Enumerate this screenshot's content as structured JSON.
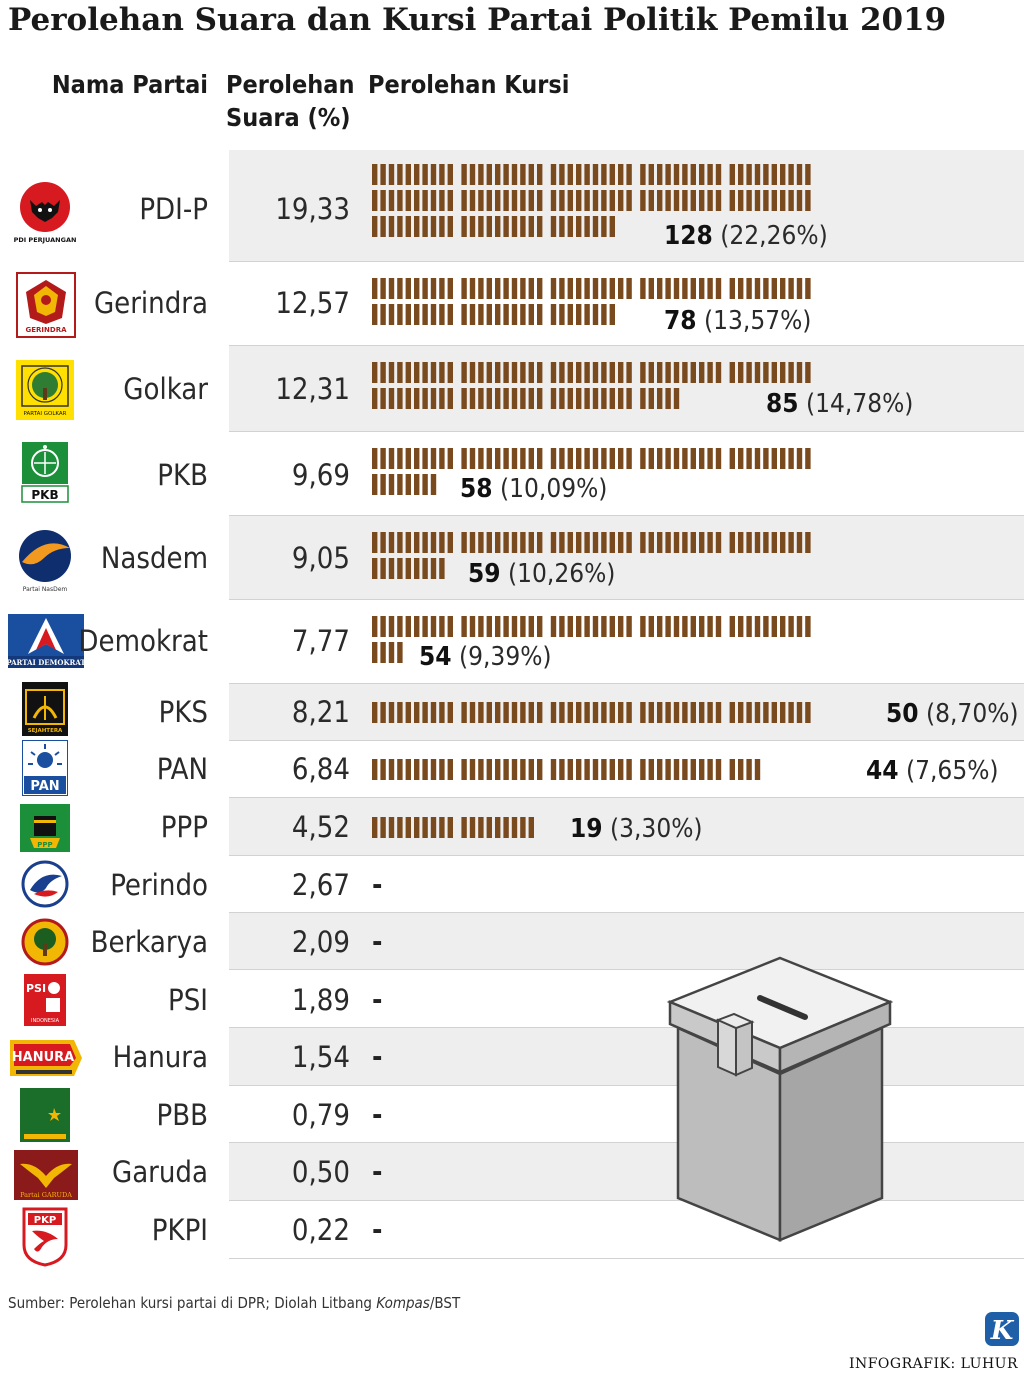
{
  "title": "Perolehan Suara dan Kursi Partai Politik Pemilu 2019",
  "headers": {
    "name": "Nama Partai",
    "votes_line1": "Perolehan",
    "votes_line2": "Suara (%)",
    "seats": "Perolehan Kursi"
  },
  "chart_data": {
    "type": "table",
    "columns": [
      "Nama Partai",
      "Perolehan Suara (%)",
      "Perolehan Kursi"
    ],
    "rows": [
      {
        "party": "PDI-P",
        "votes": "19,33",
        "seats": 128,
        "seat_pct": "(22,26%)",
        "logo_text": "PDI PERJUANGAN",
        "logo_icon": "bull-emblem-icon"
      },
      {
        "party": "Gerindra",
        "votes": "12,57",
        "seats": 78,
        "seat_pct": "(13,57%)",
        "logo_text": "GERINDRA",
        "logo_icon": "garuda-head-icon"
      },
      {
        "party": "Golkar",
        "votes": "12,31",
        "seats": 85,
        "seat_pct": "(14,78%)",
        "logo_text": "PARTAI GOLKAR",
        "logo_icon": "banyan-tree-icon"
      },
      {
        "party": "PKB",
        "votes": "9,69",
        "seats": 58,
        "seat_pct": "(10,09%)",
        "logo_text": "PKB",
        "logo_icon": "globe-stars-icon"
      },
      {
        "party": "Nasdem",
        "votes": "9,05",
        "seats": 59,
        "seat_pct": "(10,26%)",
        "logo_text": "Partai NasDem",
        "logo_icon": "orange-circle-icon"
      },
      {
        "party": "Demokrat",
        "votes": "7,77",
        "seats": 54,
        "seat_pct": "(9,39%)",
        "logo_text": "PARTAI DEMOKRAT",
        "logo_icon": "mercy-star-icon"
      },
      {
        "party": "PKS",
        "votes": "8,21",
        "seats": 50,
        "seat_pct": "(8,70%)",
        "logo_text": "SEJAHTERA",
        "logo_icon": "crescent-rice-icon"
      },
      {
        "party": "PAN",
        "votes": "6,84",
        "seats": 44,
        "seat_pct": "(7,65%)",
        "logo_text": "PAN",
        "logo_icon": "sun-rays-icon"
      },
      {
        "party": "PPP",
        "votes": "4,52",
        "seats": 19,
        "seat_pct": "(3,30%)",
        "logo_text": "PPP",
        "logo_icon": "kaaba-icon"
      },
      {
        "party": "Perindo",
        "votes": "2,67",
        "seats": null,
        "seat_pct": null,
        "logo_text": "",
        "logo_icon": "perindo-swirl-icon"
      },
      {
        "party": "Berkarya",
        "votes": "2,09",
        "seats": null,
        "seat_pct": null,
        "logo_text": "",
        "logo_icon": "berkarya-tree-icon"
      },
      {
        "party": "PSI",
        "votes": "1,89",
        "seats": null,
        "seat_pct": null,
        "logo_text": "PSI",
        "logo_icon": "rose-hand-icon"
      },
      {
        "party": "Hanura",
        "votes": "1,54",
        "seats": null,
        "seat_pct": null,
        "logo_text": "HANURA",
        "logo_icon": "hanura-banner-icon"
      },
      {
        "party": "PBB",
        "votes": "0,79",
        "seats": null,
        "seat_pct": null,
        "logo_text": "",
        "logo_icon": "crescent-star-icon"
      },
      {
        "party": "Garuda",
        "votes": "0,50",
        "seats": null,
        "seat_pct": null,
        "logo_text": "Partai GARUDA",
        "logo_icon": "garuda-wings-icon"
      },
      {
        "party": "PKPI",
        "votes": "0,22",
        "seats": null,
        "seat_pct": null,
        "logo_text": "PKP",
        "logo_icon": "pkpi-shield-icon"
      }
    ],
    "seat_unit": "1 kursi per bar, 10 per blok, 50 per baris",
    "no_seat_mark": "-"
  },
  "colors": {
    "seat_bar": "#7a4a1f",
    "band": "#eeeeee",
    "separator": "#d2d2d2"
  },
  "source_prefix": "Sumber: Perolehan kursi partai di DPR; Diolah Litbang ",
  "source_italic": "Kompas",
  "source_suffix": "/BST",
  "credit": "INFOGRAFIK: LUHUR",
  "brand_letter": "K"
}
